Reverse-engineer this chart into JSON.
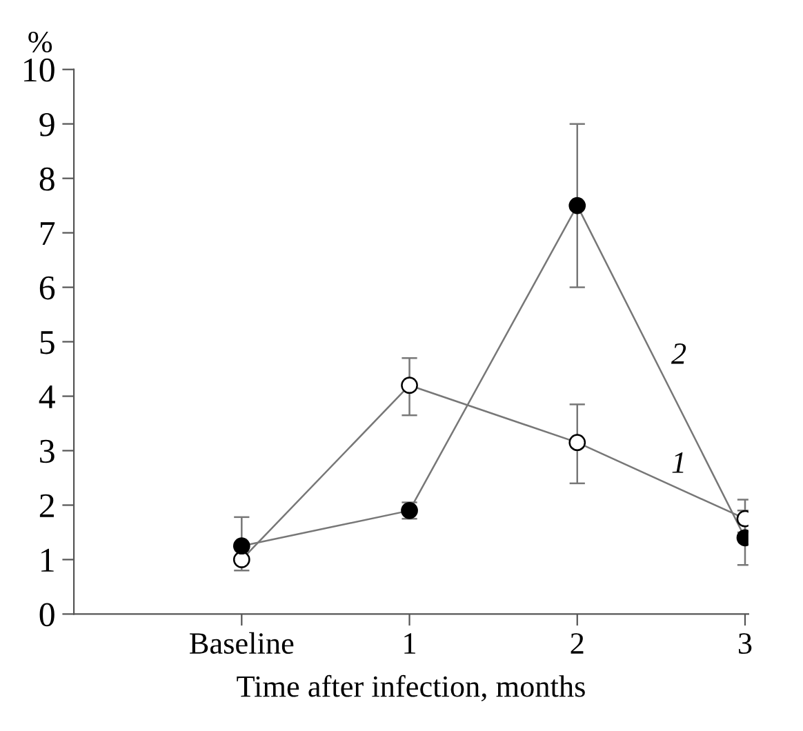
{
  "chart_data": {
    "type": "line",
    "ylabel": "%",
    "xlabel": "Time after infection, months",
    "categories": [
      "Baseline",
      "1",
      "2",
      "3"
    ],
    "ylim": [
      0,
      10
    ],
    "yticks": [
      0,
      1,
      2,
      3,
      4,
      5,
      6,
      7,
      8,
      9,
      10
    ],
    "grid": false,
    "legend": false,
    "marker": "circle",
    "line_style": "solid",
    "series": [
      {
        "name": "1",
        "color": "#ffffff",
        "values": [
          1.0,
          4.2,
          3.15,
          1.75
        ],
        "errors": [
          [
            0.8,
            1.0
          ],
          [
            3.65,
            4.7
          ],
          [
            2.4,
            3.85
          ],
          [
            1.5,
            2.1
          ]
        ]
      },
      {
        "name": "2",
        "color": "#000000",
        "values": [
          1.25,
          1.9,
          7.5,
          1.4
        ],
        "errors": [
          [
            1.25,
            1.78
          ],
          [
            1.75,
            2.05
          ],
          [
            6.0,
            9.0
          ],
          [
            0.9,
            1.9
          ]
        ]
      }
    ]
  }
}
